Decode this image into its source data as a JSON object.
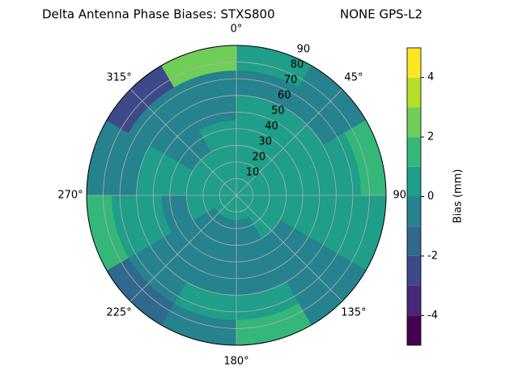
{
  "chart_data": {
    "type": "polar_contour",
    "title": "Delta Antenna Phase Biases: STXS800",
    "subtitle": "NONE GPS-L2",
    "azimuth": [
      0,
      30,
      60,
      90,
      120,
      150,
      180,
      210,
      240,
      270,
      300,
      330,
      360
    ],
    "zenith": [
      0,
      15,
      30,
      45,
      60,
      75,
      90
    ],
    "values": [
      [
        0.5,
        0.5,
        0.5,
        0.5,
        0.5,
        0.5,
        0.5,
        0.5,
        0.5,
        0.5,
        0.5,
        0.5
      ],
      [
        0.5,
        0.5,
        0.5,
        0.5,
        0.5,
        -0.5,
        -0.5,
        -0.5,
        0.5,
        0.5,
        0.5,
        0.5
      ],
      [
        0.5,
        0.5,
        0.5,
        0.5,
        -0.5,
        -0.5,
        -0.5,
        -0.5,
        -0.5,
        0.5,
        -0.5,
        0.5
      ],
      [
        0.5,
        0.5,
        0.5,
        0.5,
        -0.5,
        -0.5,
        -0.5,
        -0.5,
        0.5,
        0.5,
        -0.5,
        -0.5
      ],
      [
        -0.5,
        -0.5,
        0.5,
        0.5,
        -0.5,
        0.5,
        0.5,
        -0.5,
        0.5,
        -0.5,
        -0.5,
        -0.5
      ],
      [
        0.5,
        -0.5,
        1.5,
        0.5,
        -0.5,
        1.5,
        -0.5,
        -1.5,
        1.5,
        -0.5,
        -2.5,
        2.5
      ]
    ],
    "levels": [
      -5,
      -4,
      -3,
      -2,
      -1,
      0,
      1,
      2,
      3,
      4,
      5
    ],
    "colors": [
      "#440154",
      "#482878",
      "#3e4989",
      "#31688e",
      "#26828e",
      "#1f9e89",
      "#35b779",
      "#6ece58",
      "#b5de2b",
      "#fde725"
    ],
    "rlim": [
      0,
      90
    ],
    "rticks": [
      10,
      20,
      30,
      40,
      50,
      60,
      70,
      80,
      90
    ],
    "thetaticks": [
      {
        "value": 0,
        "label": "0°"
      },
      {
        "value": 45,
        "label": "45°"
      },
      {
        "value": 90,
        "label": "90°"
      },
      {
        "value": 135,
        "label": "135°"
      },
      {
        "value": 180,
        "label": "180°"
      },
      {
        "value": 225,
        "label": "225°"
      },
      {
        "value": 270,
        "label": "270°"
      },
      {
        "value": 315,
        "label": "315°"
      }
    ],
    "colorbar_label": "Bias (mm)",
    "colorbar_lim": [
      -5,
      5
    ],
    "colorbar_ticks": [
      -4,
      -2,
      0,
      2,
      4
    ],
    "grid": true
  }
}
